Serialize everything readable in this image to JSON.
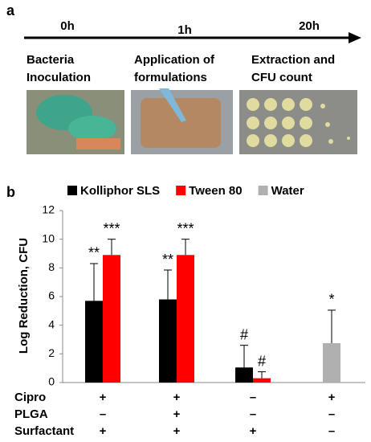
{
  "panel_a": {
    "label": "a",
    "timepoints": [
      "0h",
      "1h",
      "20h"
    ],
    "steps": [
      [
        "Bacteria",
        "Inoculation"
      ],
      [
        "Application of",
        "formulations"
      ],
      [
        "Extraction and",
        "CFU count"
      ]
    ]
  },
  "panel_b": {
    "label": "b"
  },
  "chart_data": {
    "type": "bar",
    "y_label": "Log Reduction, CFU",
    "categories": [
      null,
      null,
      null,
      null
    ],
    "series": [
      {
        "name": "Kolliphor SLS",
        "color": "#000000",
        "values": [
          5.7,
          5.8,
          1.05,
          null
        ],
        "errors": [
          2.6,
          2.05,
          1.55,
          null
        ],
        "annotations": [
          "**",
          "**",
          "#",
          null
        ]
      },
      {
        "name": "Tween 80",
        "color": "#ff0000",
        "values": [
          8.9,
          8.9,
          0.3,
          null
        ],
        "errors": [
          1.1,
          1.1,
          0.45,
          null
        ],
        "annotations": [
          "***",
          "***",
          "#",
          null
        ]
      },
      {
        "name": "Water",
        "color": "#b0b0b0",
        "values": [
          null,
          null,
          null,
          2.75
        ],
        "errors": [
          null,
          null,
          null,
          2.3
        ],
        "annotations": [
          null,
          null,
          null,
          "*"
        ]
      }
    ],
    "ylim": [
      0,
      12
    ],
    "yticks": [
      0,
      2,
      4,
      6,
      8,
      10,
      12
    ],
    "conditions": [
      {
        "label": "Cipro",
        "marks": [
          "+",
          "+",
          "–",
          "+"
        ]
      },
      {
        "label": "PLGA",
        "marks": [
          "–",
          "+",
          "–",
          "–"
        ]
      },
      {
        "label": "Surfactant",
        "marks": [
          "+",
          "+",
          "+",
          "–"
        ]
      }
    ]
  }
}
